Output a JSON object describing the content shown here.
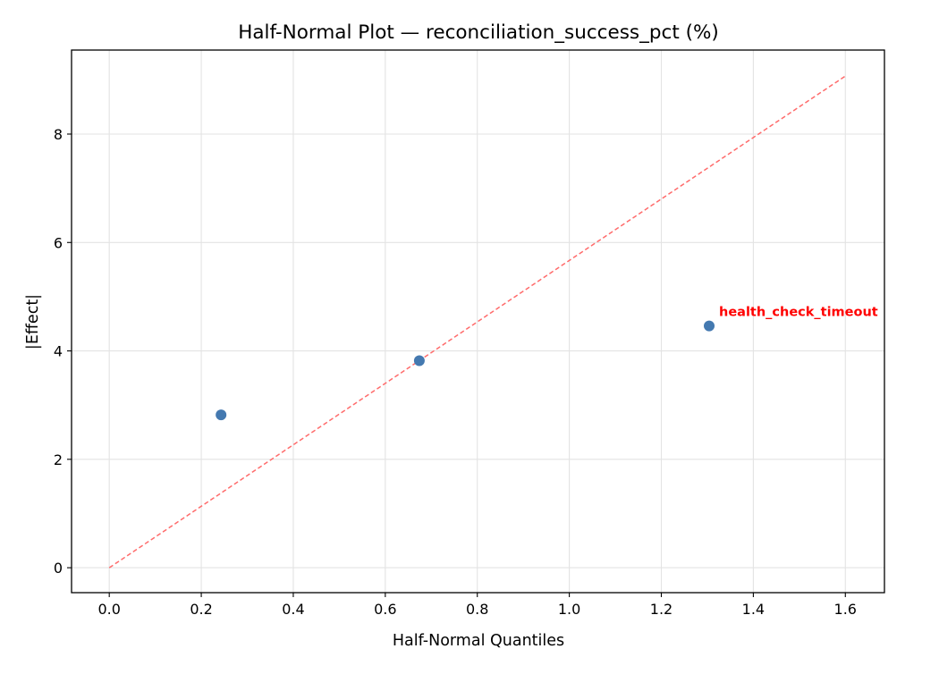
{
  "chart_data": {
    "type": "scatter",
    "title": "Half-Normal Plot — reconciliation_success_pct (%)",
    "xlabel": "Half-Normal Quantiles",
    "ylabel": "|Effect|",
    "xlim": [
      -0.082,
      1.685
    ],
    "ylim": [
      -0.46,
      9.55
    ],
    "xticks": [
      0.0,
      0.2,
      0.4,
      0.6,
      0.8,
      1.0,
      1.2,
      1.4,
      1.6
    ],
    "xtick_labels": [
      "0.0",
      "0.2",
      "0.4",
      "0.6",
      "0.8",
      "1.0",
      "1.2",
      "1.4",
      "1.6"
    ],
    "yticks": [
      0,
      2,
      4,
      6,
      8
    ],
    "ytick_labels": [
      "0",
      "2",
      "4",
      "6",
      "8"
    ],
    "grid": true,
    "points": [
      {
        "x": 0.243,
        "y": 2.82,
        "label": ""
      },
      {
        "x": 0.674,
        "y": 3.82,
        "label": ""
      },
      {
        "x": 1.304,
        "y": 4.46,
        "label": "health_check_timeout"
      }
    ],
    "reference_line": {
      "x": [
        0.0,
        1.6
      ],
      "y": [
        0.0,
        9.07
      ],
      "style": "dashed"
    },
    "colors": {
      "points": "#4479b0",
      "reference_line": "#ff6b6b",
      "annotation": "#ff0000"
    }
  }
}
